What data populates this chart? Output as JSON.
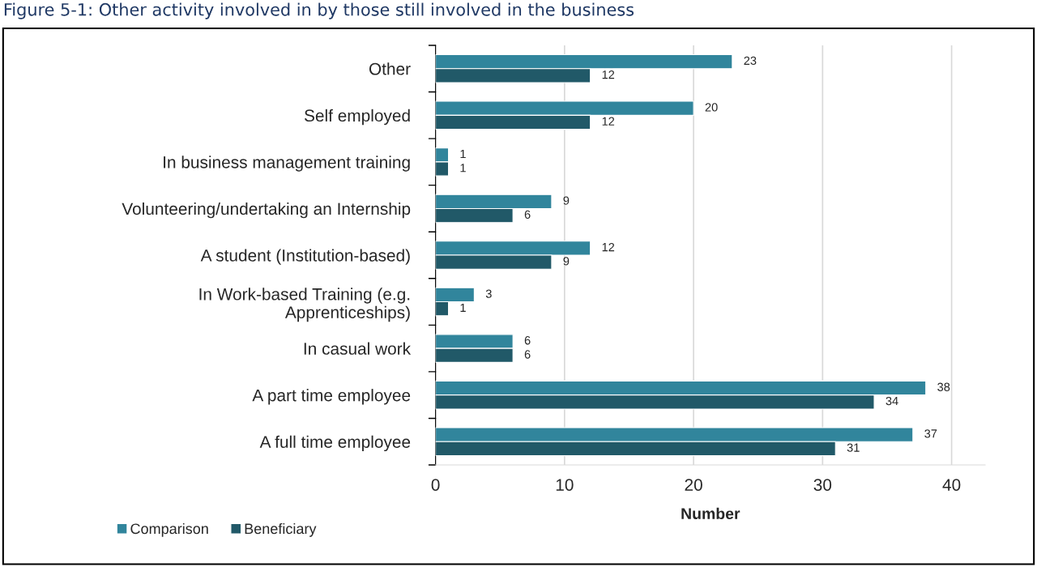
{
  "chart_data": {
    "type": "bar",
    "orientation": "horizontal",
    "title": "Figure 5-1: Other activity involved in by those still involved in the business",
    "xlabel": "Number",
    "categories": [
      "Other",
      "Self employed",
      "In business management training",
      "Volunteering/undertaking an Internship",
      "A student (Institution-based)",
      "In Work-based Training (e.g.\nApprenticeships)",
      "In casual work",
      "A part time employee",
      "A full time employee"
    ],
    "series": [
      {
        "name": "Comparison",
        "color": "#31859c",
        "values": [
          23,
          20,
          1,
          9,
          12,
          3,
          6,
          38,
          37
        ]
      },
      {
        "name": "Beneficiary",
        "color": "#215968",
        "values": [
          12,
          12,
          1,
          6,
          9,
          1,
          6,
          34,
          31
        ]
      }
    ],
    "xlim": [
      0,
      42.6
    ],
    "xticks": [
      0,
      10,
      20,
      30,
      40
    ],
    "grid": "x",
    "legend": "bottom left",
    "data_labels": true
  }
}
